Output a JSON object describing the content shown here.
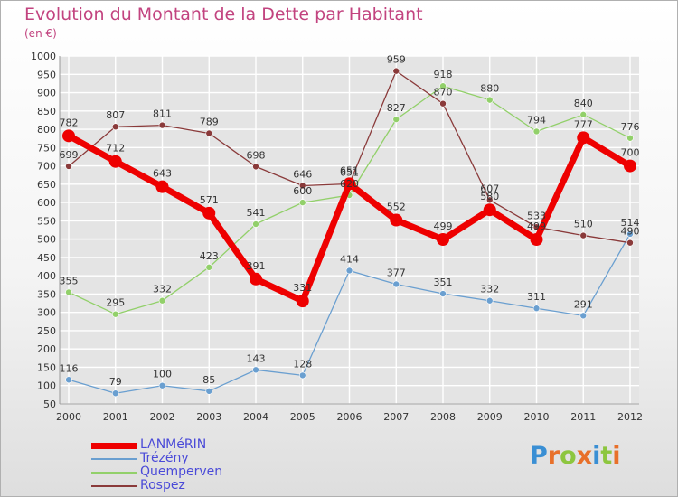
{
  "title": "Evolution du Montant de la Dette par Habitant",
  "subtitle": "(en €)",
  "logo": {
    "letters": [
      "P",
      "r",
      "o",
      "x",
      "i",
      "t",
      "i"
    ],
    "colors": [
      "#3a8fd4",
      "#e8702a",
      "#8dc63f",
      "#e8702a",
      "#3a8fd4",
      "#8dc63f",
      "#e8702a"
    ]
  },
  "chart_data": {
    "type": "line",
    "x": [
      "2000",
      "2001",
      "2002",
      "2003",
      "2004",
      "2005",
      "2006",
      "2007",
      "2008",
      "2009",
      "2010",
      "2011",
      "2012"
    ],
    "ylim": [
      50,
      1000
    ],
    "yticks": [
      50,
      100,
      150,
      200,
      250,
      300,
      350,
      400,
      450,
      500,
      550,
      600,
      650,
      700,
      750,
      800,
      850,
      900,
      950,
      1000
    ],
    "grid": true,
    "legend_position": "bottom-left",
    "series": [
      {
        "name": "LANMéRIN",
        "color": "#ee0000",
        "width": 7,
        "marker": 7,
        "values": [
          782,
          712,
          643,
          571,
          391,
          331,
          651,
          552,
          499,
          580,
          499,
          777,
          700
        ],
        "labels": [
          "782",
          "712",
          "643",
          "571",
          "391",
          "331",
          "651",
          "552",
          "499",
          "580",
          "499",
          "777",
          "700"
        ]
      },
      {
        "name": "Trézény",
        "color": "#6a9fd0",
        "width": 1.3,
        "marker": 3.5,
        "values": [
          116,
          79,
          100,
          85,
          143,
          128,
          414,
          377,
          351,
          332,
          311,
          291,
          514
        ],
        "labels": [
          "116",
          "79",
          "100",
          "85",
          "143",
          "128",
          "414",
          "377",
          "351",
          "332",
          "311",
          "291",
          "514"
        ]
      },
      {
        "name": "Quemperven",
        "color": "#92d06a",
        "width": 1.3,
        "marker": 3.5,
        "values": [
          355,
          295,
          332,
          423,
          541,
          600,
          620,
          827,
          918,
          880,
          794,
          840,
          776
        ],
        "labels": [
          "355",
          "295",
          "332",
          "423",
          "541",
          "600",
          "620",
          "827",
          "918",
          "880",
          "794",
          "840",
          "776"
        ]
      },
      {
        "name": "Rospez",
        "color": "#8a3a3a",
        "width": 1.3,
        "marker": 3.5,
        "values": [
          699,
          807,
          811,
          789,
          698,
          646,
          651,
          959,
          870,
          607,
          533,
          510,
          490
        ],
        "labels": [
          "699",
          "807",
          "811",
          "789",
          "698",
          "646",
          "651",
          "959",
          "870",
          "607",
          "533",
          "510",
          "490"
        ]
      }
    ]
  }
}
